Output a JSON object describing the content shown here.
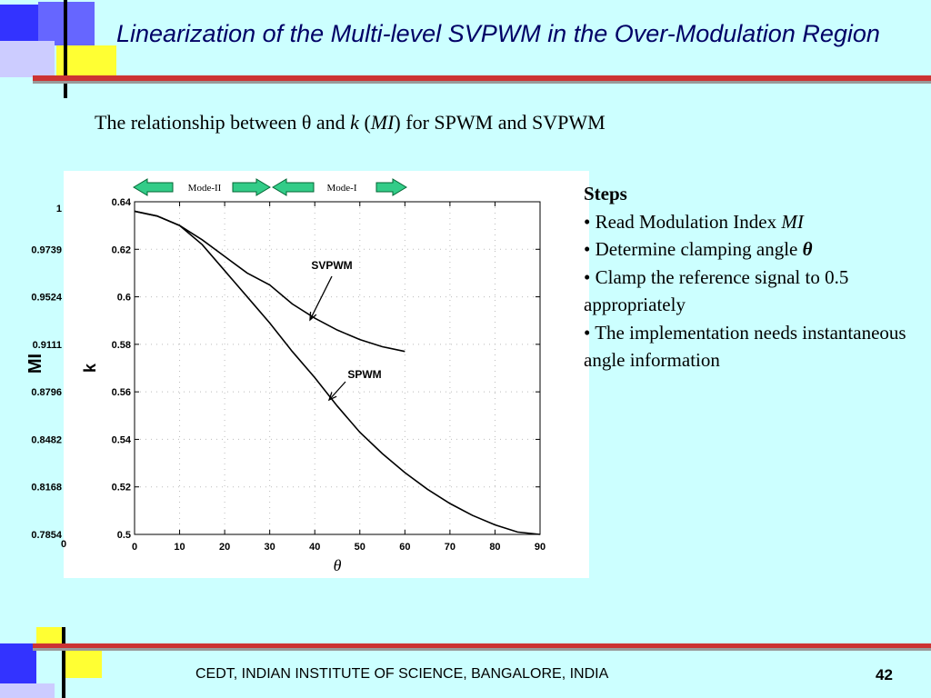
{
  "header": {
    "title": "Linearization of the Multi-level SVPWM in the Over-Modulation Region"
  },
  "subtitle": {
    "before": "The relationship between θ and ",
    "k": "k",
    "mid": " (",
    "mi": "MI",
    "after": ") for SPWM and SVPWM"
  },
  "steps": {
    "heading": "Steps",
    "bullets": [
      {
        "text": "Read Modulation Index ",
        "em": "MI"
      },
      {
        "text": "Determine clamping angle ",
        "em": "θ"
      },
      {
        "text": "Clamp the reference signal to 0.5 appropriately"
      },
      {
        "text": "The implementation needs instantaneous angle information"
      }
    ]
  },
  "footer": {
    "text": "CEDT, INDIAN INSTITUTE OF SCIENCE, BANGALORE, INDIA",
    "page": "42"
  },
  "chart_data": {
    "type": "line",
    "xlabel": "θ",
    "ylabel": "k",
    "x": [
      0,
      5,
      10,
      15,
      20,
      25,
      30,
      35,
      40,
      45,
      50,
      55,
      60,
      65,
      70,
      75,
      80,
      85,
      90
    ],
    "series": [
      {
        "name": "SVPWM",
        "color": "#000000",
        "values": [
          0.636,
          0.634,
          0.63,
          0.624,
          0.617,
          0.61,
          0.605,
          0.597,
          0.591,
          0.586,
          0.582,
          0.579,
          0.577,
          null,
          null,
          null,
          null,
          null,
          null
        ]
      },
      {
        "name": "SPWM",
        "color": "#000000",
        "values": [
          0.636,
          0.634,
          0.63,
          0.622,
          0.611,
          0.6,
          0.589,
          0.577,
          0.566,
          0.554,
          0.543,
          0.534,
          0.526,
          0.519,
          0.513,
          0.508,
          0.504,
          0.501,
          0.5
        ]
      }
    ],
    "xlim": [
      0,
      90
    ],
    "xticks": [
      0,
      10,
      20,
      30,
      40,
      50,
      60,
      70,
      80,
      90
    ],
    "ylim": [
      0.5,
      0.64
    ],
    "yticks": [
      0.5,
      0.52,
      0.54,
      0.56,
      0.58,
      0.6,
      0.62,
      0.64
    ],
    "grid": true,
    "mi_axis": {
      "label": "MI",
      "ticks": [
        1,
        0.9739,
        0.9524,
        0.9111,
        0.8796,
        0.8482,
        0.8168,
        0.7854
      ],
      "origin": 0
    },
    "modes": [
      "Mode-II",
      "Mode-I"
    ]
  }
}
